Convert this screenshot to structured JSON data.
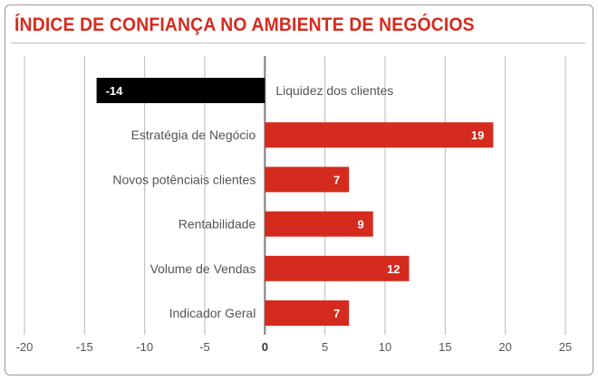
{
  "chart_data": {
    "type": "bar",
    "orientation": "horizontal",
    "title": "ÍNDICE DE CONFIANÇA NO AMBIENTE DE NEGÓCIOS",
    "categories": [
      "Liquidez dos clientes",
      "Estratégia de Negócio",
      "Novos potênciais clientes",
      "Rentabilidade",
      "Volume de Vendas",
      "Indicador Geral"
    ],
    "values": [
      -14,
      19,
      7,
      9,
      12,
      7
    ],
    "data_labels": [
      "-14",
      "19",
      "7",
      "9",
      "12",
      "7"
    ],
    "xlim": [
      -20,
      25
    ],
    "x_ticks": [
      "-20",
      "-15",
      "-10",
      "-5",
      "0",
      "5",
      "10",
      "15",
      "20",
      "25"
    ],
    "grid": "vertical",
    "colors": {
      "positive": "#d52b1e",
      "negative": "#000000",
      "title": "#d52b1e"
    }
  }
}
